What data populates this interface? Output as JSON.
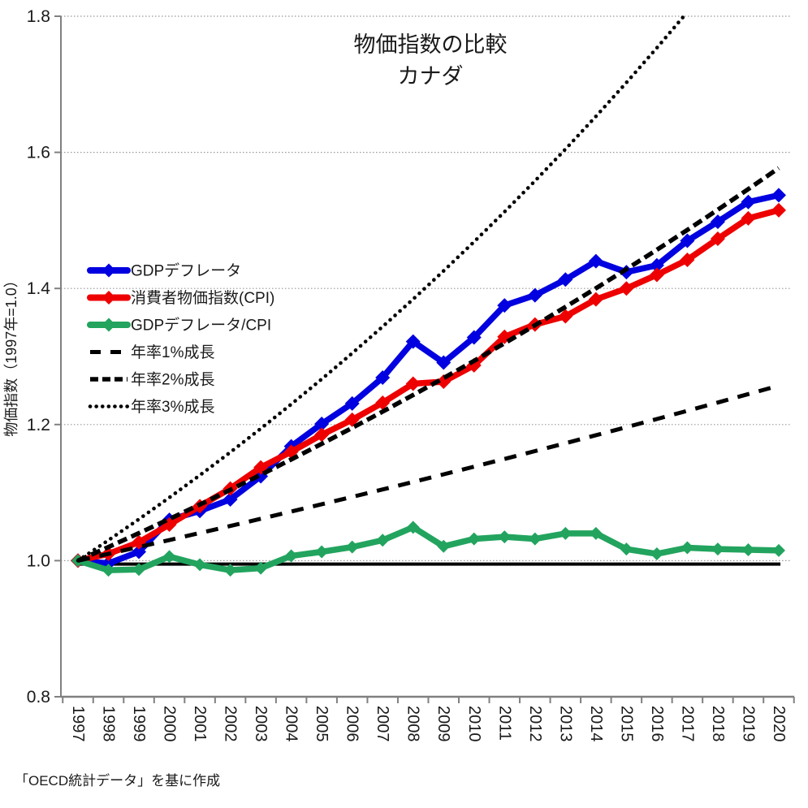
{
  "title": {
    "line1": "物価指数の比較",
    "line2": "カナダ"
  },
  "footer": {
    "source_note": "「OECD統計データ」を基に作成"
  },
  "chart_data": {
    "type": "line",
    "title": "物価指数の比較 カナダ",
    "xlabel": "",
    "ylabel": "物価指数（1997年=1.0）",
    "ylim": [
      0.8,
      1.8
    ],
    "ytick_labels": [
      "0.8",
      "1.0",
      "1.2",
      "1.4",
      "1.6",
      "1.8"
    ],
    "ytick_values": [
      0.8,
      1.0,
      1.2,
      1.4,
      1.6,
      1.8
    ],
    "grid_values": [
      1.0,
      1.2,
      1.4,
      1.6,
      1.8
    ],
    "grid_style": "dotted",
    "baseline_value": 0.995,
    "legend_position": "upper-left-inside",
    "x": [
      1997,
      1998,
      1999,
      2000,
      2001,
      2002,
      2003,
      2004,
      2005,
      2006,
      2007,
      2008,
      2009,
      2010,
      2011,
      2012,
      2013,
      2014,
      2015,
      2016,
      2017,
      2018,
      2019,
      2020
    ],
    "series": [
      {
        "id": "gdp-deflator",
        "name": "GDPデフレータ",
        "color": "#0000e0",
        "style": "solid-diamond",
        "values": [
          1.0,
          0.996,
          1.013,
          1.06,
          1.073,
          1.09,
          1.124,
          1.168,
          1.201,
          1.231,
          1.269,
          1.322,
          1.291,
          1.328,
          1.375,
          1.39,
          1.413,
          1.44,
          1.424,
          1.434,
          1.47,
          1.498,
          1.527,
          1.537
        ]
      },
      {
        "id": "cpi",
        "name": "消費者物価指数(CPI)",
        "color": "#ee0000",
        "style": "solid-diamond",
        "values": [
          1.0,
          1.01,
          1.027,
          1.053,
          1.08,
          1.106,
          1.137,
          1.16,
          1.185,
          1.207,
          1.232,
          1.26,
          1.263,
          1.287,
          1.329,
          1.347,
          1.359,
          1.384,
          1.4,
          1.42,
          1.442,
          1.473,
          1.503,
          1.515
        ]
      },
      {
        "id": "gdp-deflator-cpi-ratio",
        "name": "GDPデフレータ/CPI",
        "color": "#22a45e",
        "style": "solid-diamond",
        "values": [
          1.0,
          0.986,
          0.987,
          1.006,
          0.994,
          0.986,
          0.989,
          1.007,
          1.013,
          1.02,
          1.03,
          1.049,
          1.021,
          1.032,
          1.035,
          1.032,
          1.04,
          1.04,
          1.017,
          1.01,
          1.019,
          1.017,
          1.016,
          1.015
        ]
      },
      {
        "id": "growth-1pct",
        "name": "年率1%成長",
        "color": "#000000",
        "style": "dash-long",
        "growth_rate": 0.01
      },
      {
        "id": "growth-2pct",
        "name": "年率2%成長",
        "color": "#000000",
        "style": "dash-medium",
        "growth_rate": 0.02
      },
      {
        "id": "growth-3pct",
        "name": "年率3%成長",
        "color": "#000000",
        "style": "dotted",
        "growth_rate": 0.03
      }
    ]
  }
}
